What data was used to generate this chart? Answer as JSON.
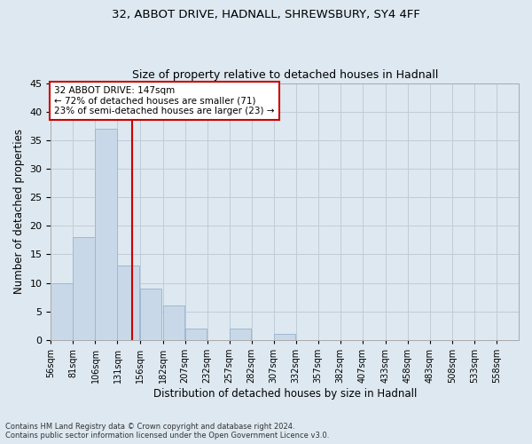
{
  "title1": "32, ABBOT DRIVE, HADNALL, SHREWSBURY, SY4 4FF",
  "title2": "Size of property relative to detached houses in Hadnall",
  "xlabel": "Distribution of detached houses by size in Hadnall",
  "ylabel": "Number of detached properties",
  "bin_labels": [
    "56sqm",
    "81sqm",
    "106sqm",
    "131sqm",
    "156sqm",
    "182sqm",
    "207sqm",
    "232sqm",
    "257sqm",
    "282sqm",
    "307sqm",
    "332sqm",
    "357sqm",
    "382sqm",
    "407sqm",
    "433sqm",
    "458sqm",
    "483sqm",
    "508sqm",
    "533sqm",
    "558sqm"
  ],
  "bin_edges": [
    56,
    81,
    106,
    131,
    156,
    182,
    207,
    232,
    257,
    282,
    307,
    332,
    357,
    382,
    407,
    433,
    458,
    483,
    508,
    533,
    558
  ],
  "bar_heights": [
    10,
    18,
    37,
    13,
    9,
    6,
    2,
    0,
    2,
    0,
    1,
    0,
    0,
    0,
    0,
    0,
    0,
    0,
    0,
    0,
    0
  ],
  "bar_color": "#c8d8e8",
  "bar_edge_color": "#a0b8d0",
  "property_size": 147,
  "red_line_color": "#cc0000",
  "annotation_line1": "32 ABBOT DRIVE: 147sqm",
  "annotation_line2": "← 72% of detached houses are smaller (71)",
  "annotation_line3": "23% of semi-detached houses are larger (23) →",
  "annotation_box_color": "#ffffff",
  "annotation_box_edge": "#cc0000",
  "ylim": [
    0,
    45
  ],
  "yticks": [
    0,
    5,
    10,
    15,
    20,
    25,
    30,
    35,
    40,
    45
  ],
  "grid_color": "#c0ccd8",
  "background_color": "#dde8f0",
  "fig_background": "#dde8f0",
  "footer1": "Contains HM Land Registry data © Crown copyright and database right 2024.",
  "footer2": "Contains public sector information licensed under the Open Government Licence v3.0."
}
